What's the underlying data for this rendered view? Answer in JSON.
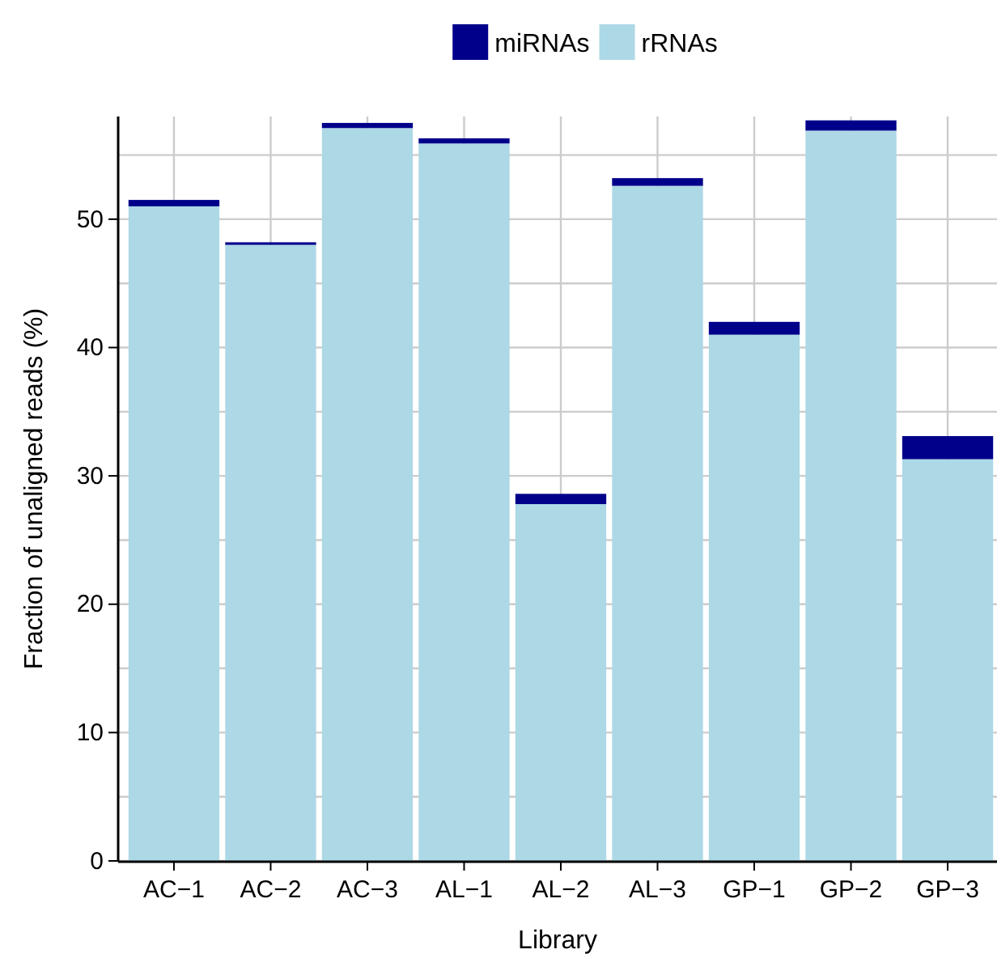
{
  "chart_data": {
    "type": "bar",
    "stacked": true,
    "xlabel": "Library",
    "ylabel": "Fraction of unaligned reads (%)",
    "categories": [
      "AC−1",
      "AC−2",
      "AC−3",
      "AL−1",
      "AL−2",
      "AL−3",
      "GP−1",
      "GP−2",
      "GP−3"
    ],
    "series": [
      {
        "name": "rRNAs",
        "color": "#add8e6",
        "values": [
          51.0,
          48.0,
          57.1,
          55.9,
          27.8,
          52.6,
          41.0,
          56.9,
          31.3
        ]
      },
      {
        "name": "miRNAs",
        "color": "#00008b",
        "values": [
          0.5,
          0.2,
          0.4,
          0.4,
          0.8,
          0.6,
          1.0,
          0.8,
          1.8
        ]
      }
    ],
    "ylim": [
      0,
      58
    ],
    "yticks": [
      0,
      {
        "value": 5,
        "label": null
      },
      10,
      {
        "value": 15,
        "label": null
      },
      20,
      {
        "value": 25,
        "label": null
      },
      30,
      {
        "value": 35,
        "label": null
      },
      40,
      {
        "value": 45,
        "label": null
      },
      50,
      {
        "value": 55,
        "label": null
      }
    ],
    "grid": true,
    "legend": "top"
  }
}
